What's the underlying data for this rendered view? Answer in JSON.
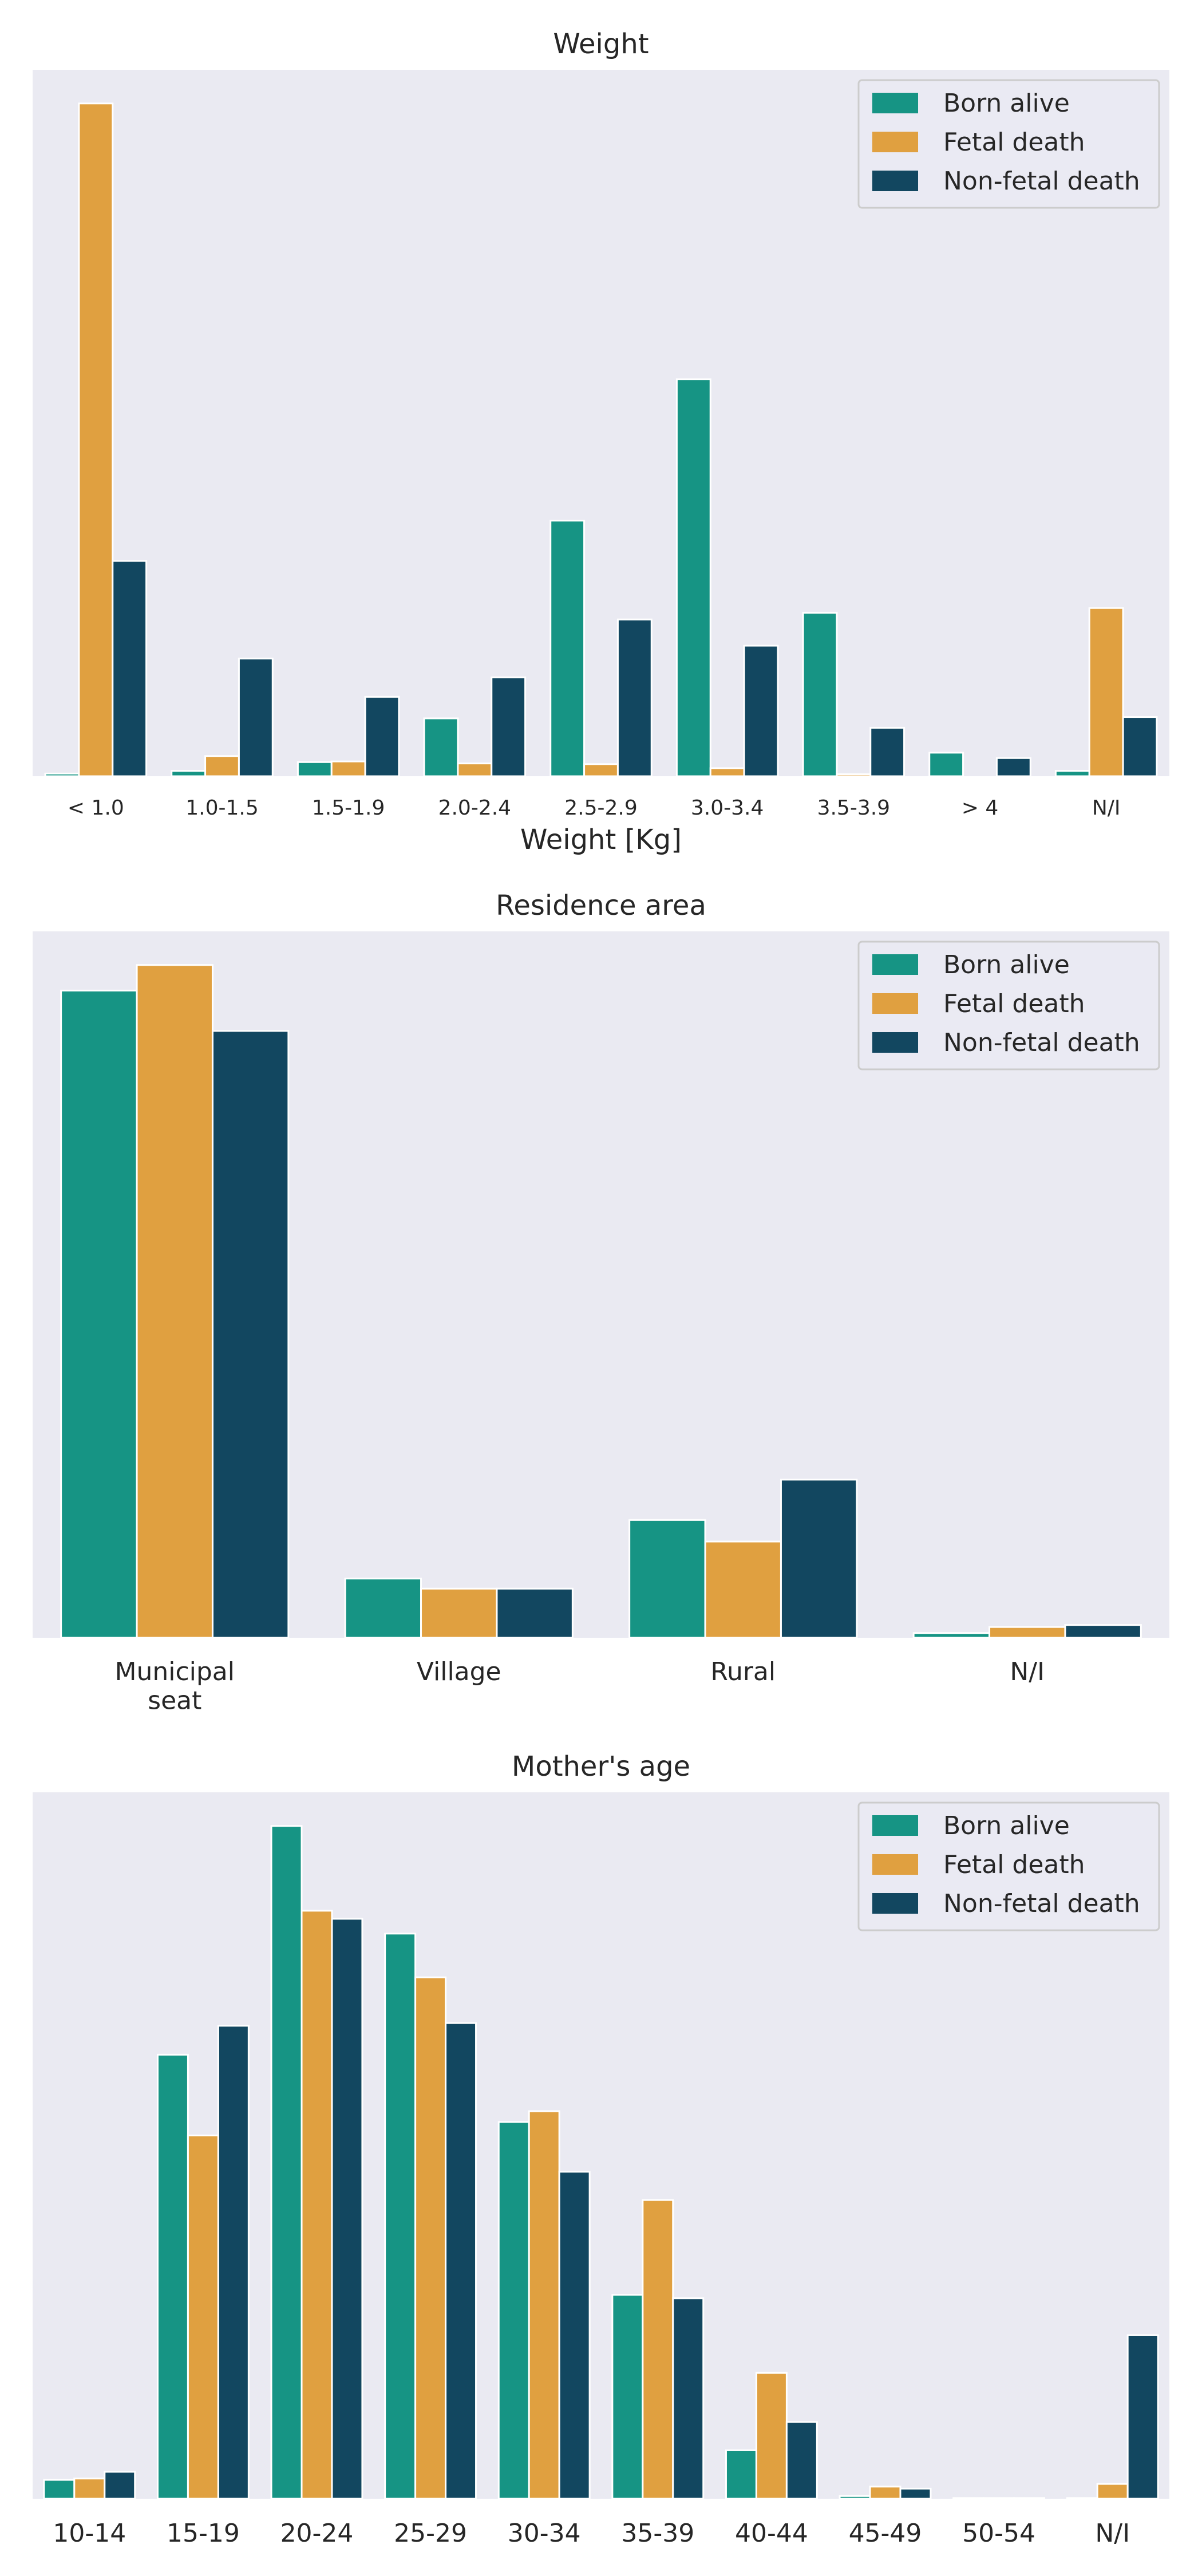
{
  "colors": {
    "plot_bg": "#eaeaf2",
    "series": [
      "#169484",
      "#e0a040",
      "#124760"
    ],
    "text": "#262626"
  },
  "chart_data": [
    {
      "type": "bar",
      "title": "Weight",
      "xlabel": "Weight [Kg]",
      "ylabel": "",
      "grid": false,
      "legend_position": "top-right",
      "categories": [
        "< 1.0",
        "1.0-1.5",
        "1.5-1.9",
        "2.0-2.4",
        "2.5-2.9",
        "3.0-3.4",
        "3.5-3.9",
        "> 4",
        "N/I"
      ],
      "ylim": [
        0,
        1.05
      ],
      "series": [
        {
          "name": "Born alive",
          "values": [
            0.004,
            0.008,
            0.021,
            0.086,
            0.38,
            0.59,
            0.243,
            0.035,
            0.008
          ]
        },
        {
          "name": "Fetal death",
          "values": [
            1.0,
            0.03,
            0.022,
            0.019,
            0.018,
            0.012,
            0.003,
            0.0,
            0.25
          ]
        },
        {
          "name": "Non-fetal death",
          "values": [
            0.32,
            0.175,
            0.118,
            0.147,
            0.233,
            0.194,
            0.072,
            0.027,
            0.088
          ]
        }
      ]
    },
    {
      "type": "bar",
      "title": "Residence area",
      "xlabel": "",
      "ylabel": "",
      "grid": false,
      "legend_position": "top-right",
      "categories": [
        "Municipal\nseat",
        "Village",
        "Rural",
        "N/I"
      ],
      "ylim": [
        0,
        1.05
      ],
      "series": [
        {
          "name": "Born alive",
          "values": [
            0.962,
            0.088,
            0.175,
            0.007
          ]
        },
        {
          "name": "Fetal death",
          "values": [
            1.0,
            0.073,
            0.143,
            0.016
          ]
        },
        {
          "name": "Non-fetal death",
          "values": [
            0.902,
            0.073,
            0.235,
            0.019
          ]
        }
      ]
    },
    {
      "type": "bar",
      "title": "Mother's age",
      "xlabel": "",
      "ylabel": "",
      "grid": false,
      "legend_position": "top-right",
      "categories": [
        "10-14",
        "15-19",
        "20-24",
        "25-29",
        "30-34",
        "35-39",
        "40-44",
        "45-49",
        "50-54",
        "N/I"
      ],
      "ylim": [
        0,
        1.05
      ],
      "series": [
        {
          "name": "Born alive",
          "values": [
            0.028,
            0.66,
            1.0,
            0.84,
            0.56,
            0.303,
            0.072,
            0.004,
            0.001,
            0.001
          ]
        },
        {
          "name": "Fetal death",
          "values": [
            0.03,
            0.54,
            0.874,
            0.775,
            0.576,
            0.444,
            0.187,
            0.018,
            0.001,
            0.022
          ]
        },
        {
          "name": "Non-fetal death",
          "values": [
            0.04,
            0.703,
            0.862,
            0.707,
            0.486,
            0.298,
            0.114,
            0.015,
            0.001,
            0.243
          ]
        }
      ]
    }
  ]
}
